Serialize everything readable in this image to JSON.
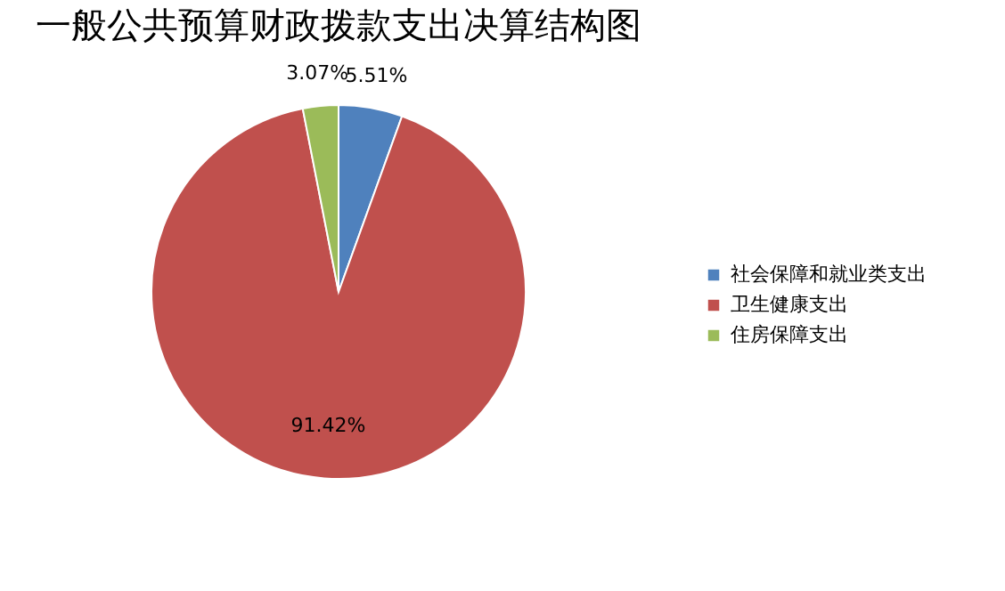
{
  "chart_data": {
    "type": "pie",
    "title": "一般公共预算财政拨款支出决算结构图",
    "categories": [
      "社会保障和就业类支出",
      "卫生健康支出",
      "住房保障支出"
    ],
    "values": [
      5.51,
      91.42,
      3.07
    ],
    "colors": [
      "#4f81bd",
      "#c0504d",
      "#9bbb59"
    ],
    "value_labels": [
      "5.51%",
      "91.42%",
      "3.07%"
    ],
    "legend": "right"
  }
}
